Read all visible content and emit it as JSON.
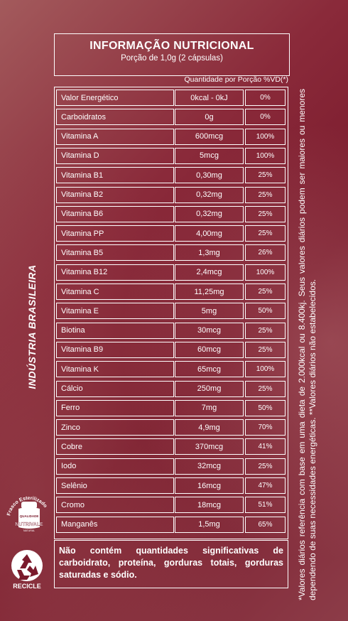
{
  "header": {
    "title": "INFORMAÇÃO NUTRICIONAL",
    "subtitle": "Porção de 1,0g (2 cápsulas)"
  },
  "column_heading": "Quantidade por Porção %VD(*)",
  "rows": [
    {
      "name": "Valor Energético",
      "amount": "0kcal - 0kJ",
      "vd": "0%"
    },
    {
      "name": "Carboidratos",
      "amount": "0g",
      "vd": "0%"
    },
    {
      "name": "Vitamina A",
      "amount": "600mcg",
      "vd": "100%"
    },
    {
      "name": "Vitamina D",
      "amount": "5mcg",
      "vd": "100%"
    },
    {
      "name": "Vitamina B1",
      "amount": "0,30mg",
      "vd": "25%"
    },
    {
      "name": "Vitamina B2",
      "amount": "0,32mg",
      "vd": "25%"
    },
    {
      "name": "Vitamina B6",
      "amount": "0,32mg",
      "vd": "25%"
    },
    {
      "name": "Vitamina PP",
      "amount": "4,00mg",
      "vd": "25%"
    },
    {
      "name": "Vitamina  B5",
      "amount": "1,3mg",
      "vd": "26%"
    },
    {
      "name": "Vitamina B12",
      "amount": "2,4mcg",
      "vd": "100%"
    },
    {
      "name": "Vitamina C",
      "amount": "11,25mg",
      "vd": "25%"
    },
    {
      "name": "Vitamina E",
      "amount": "5mg",
      "vd": "50%"
    },
    {
      "name": "Biotina",
      "amount": "30mcg",
      "vd": "25%"
    },
    {
      "name": "Vitamina B9",
      "amount": "60mcg",
      "vd": "25%"
    },
    {
      "name": "Vitamina K",
      "amount": "65mcg",
      "vd": "100%"
    },
    {
      "name": "Cálcio",
      "amount": "250mg",
      "vd": "25%"
    },
    {
      "name": "Ferro",
      "amount": "7mg",
      "vd": "50%"
    },
    {
      "name": "Zinco",
      "amount": "4,9mg",
      "vd": "70%"
    },
    {
      "name": "Cobre",
      "amount": "370mcg",
      "vd": "41%"
    },
    {
      "name": "Iodo",
      "amount": "32mcg",
      "vd": "25%"
    },
    {
      "name": "Selênio",
      "amount": "16mcg",
      "vd": "47%"
    },
    {
      "name": "Cromo",
      "amount": "18mcg",
      "vd": "51%"
    },
    {
      "name": "Manganês",
      "amount": "1,5mg",
      "vd": "65%"
    }
  ],
  "footer_note": "Não contém quantidades significativas de carboidrato, proteína, gorduras totais, gorduras saturadas e sódio.",
  "side_label": "INDÚSTRIA BRASILEIRA",
  "vd_note": "*Valores diários referência com base em uma dieta de 2.000kcal ou 8.400kj. Seus valores diários podem ser maiores ou menores dependendo de suas necessidades energéticas. **Valores diários não estabelecidos.",
  "logo": {
    "arc_text": "Frasco Esterilizado",
    "quality": "QUALIDADE",
    "brand": "NUTRIVALE",
    "sub": "NATURAL"
  },
  "recycle_label": "RECICLE",
  "colors": {
    "background": "#8a2a3a",
    "text": "#ffffff"
  }
}
